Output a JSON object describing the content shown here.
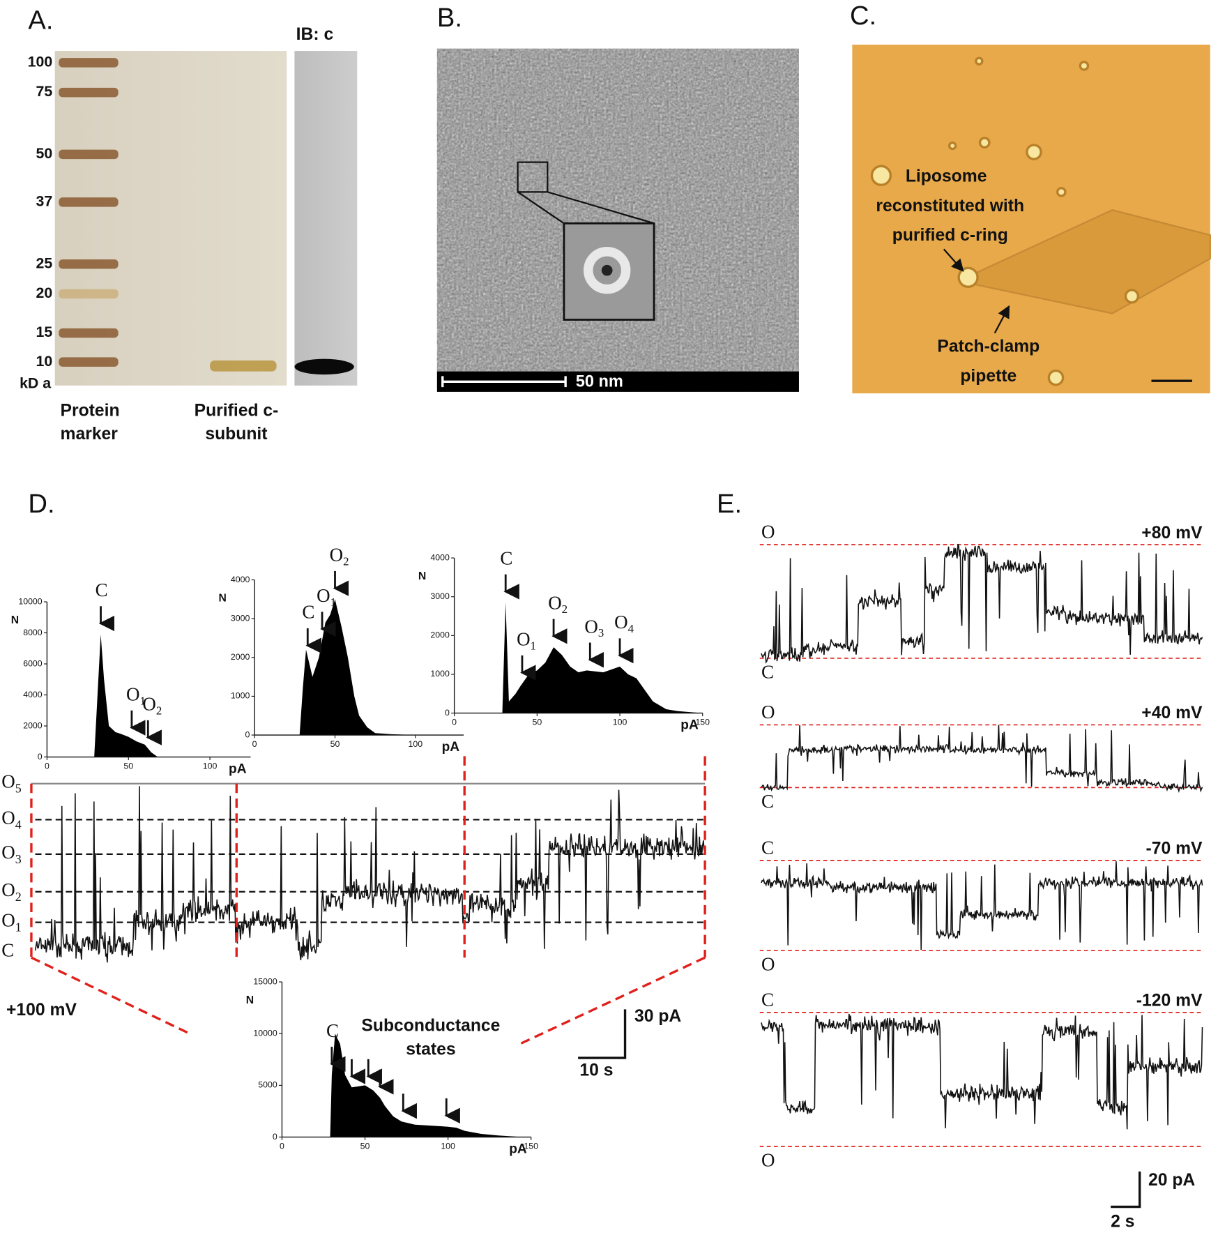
{
  "figure": {
    "panel_a": {
      "label": "A.",
      "blot_label": "IB: c",
      "marker_kda": [
        100,
        75,
        50,
        37,
        25,
        20,
        15,
        10
      ],
      "unit": "kD a",
      "lane_labels": [
        [
          "Protein",
          "marker"
        ],
        [
          "Purified c-",
          "subunit"
        ]
      ]
    },
    "panel_b": {
      "label": "B.",
      "scale_bar": "50 nm"
    },
    "panel_c": {
      "label": "C.",
      "liposome_label": [
        "Liposome",
        "reconstituted with",
        "purified c-ring"
      ],
      "pipette_label": [
        "Patch-clamp",
        "pipette"
      ]
    },
    "panel_d": {
      "label": "D.",
      "voltage": "+100 mV",
      "levels": [
        [
          "C"
        ],
        [
          "O",
          "1"
        ],
        [
          "O",
          "2"
        ],
        [
          "O",
          "3"
        ],
        [
          "O",
          "4"
        ],
        [
          "O",
          "5"
        ]
      ],
      "scale_y": "30 pA",
      "scale_x": "10 s"
    },
    "panel_e": {
      "label": "E.",
      "traces": [
        {
          "voltage": "+80 mV",
          "top": "O",
          "bottom": "C"
        },
        {
          "voltage": "+40 mV",
          "top": "O",
          "bottom": "C"
        },
        {
          "voltage": "-70 mV",
          "top": "C",
          "bottom": "O"
        },
        {
          "voltage": "-120 mV",
          "top": "C",
          "bottom": "O"
        }
      ],
      "scale_y": "20 pA",
      "scale_x": "2 s"
    }
  },
  "chart_data": [
    {
      "type": "area",
      "x_label": "pA",
      "y_label": "N",
      "x": [
        0,
        29,
        31,
        33,
        35,
        38,
        42,
        45,
        50,
        55,
        60,
        64,
        68,
        125
      ],
      "values": [
        0,
        0,
        4000,
        7900,
        5000,
        2000,
        1600,
        1500,
        1300,
        1000,
        800,
        300,
        0,
        0
      ],
      "xlim": [
        0,
        125
      ],
      "xticks": [
        0,
        50,
        100
      ],
      "ylim": [
        0,
        10000
      ],
      "yticks": [
        0,
        2000,
        4000,
        6000,
        8000,
        10000
      ],
      "annotations": [
        {
          "label": "C",
          "x": 33
        },
        {
          "label": "O",
          "sub": "1",
          "x": 52
        },
        {
          "label": "O",
          "sub": "2",
          "x": 62
        }
      ]
    },
    {
      "type": "area",
      "x_label": "pA",
      "y_label": "N",
      "x": [
        0,
        28,
        30,
        32,
        36,
        40,
        44,
        47,
        50,
        54,
        58,
        62,
        65,
        70,
        75,
        85,
        100,
        130
      ],
      "values": [
        0,
        0,
        1200,
        2200,
        1500,
        2000,
        2900,
        3100,
        3500,
        2800,
        2000,
        1000,
        500,
        200,
        50,
        20,
        0,
        0
      ],
      "xlim": [
        0,
        130
      ],
      "xticks": [
        0,
        50,
        100
      ],
      "ylim": [
        0,
        4000
      ],
      "yticks": [
        0,
        1000,
        2000,
        3000,
        4000
      ],
      "annotations": [
        {
          "label": "C",
          "x": 33
        },
        {
          "label": "O",
          "sub": "1",
          "x": 42
        },
        {
          "label": "O",
          "sub": "2",
          "x": 50
        }
      ]
    },
    {
      "type": "area",
      "x_label": "pA",
      "y_label": "N",
      "x": [
        0,
        29,
        31,
        33,
        37,
        40,
        45,
        50,
        55,
        60,
        65,
        70,
        75,
        80,
        90,
        100,
        105,
        110,
        115,
        120,
        128,
        135,
        150
      ],
      "values": [
        0,
        0,
        2850,
        300,
        500,
        700,
        1000,
        1100,
        1300,
        1700,
        1500,
        1200,
        1050,
        1100,
        1050,
        1200,
        1000,
        900,
        600,
        300,
        100,
        50,
        0
      ],
      "xlim": [
        0,
        150
      ],
      "xticks": [
        0,
        50,
        100,
        150
      ],
      "ylim": [
        0,
        4000
      ],
      "yticks": [
        0,
        1000,
        2000,
        3000,
        4000
      ],
      "annotations": [
        {
          "label": "C",
          "x": 31
        },
        {
          "label": "O",
          "sub": "1",
          "x": 41
        },
        {
          "label": "O",
          "sub": "2",
          "x": 60
        },
        {
          "label": "O",
          "sub": "3",
          "x": 82
        },
        {
          "label": "O",
          "sub": "4",
          "x": 100
        }
      ]
    },
    {
      "type": "area",
      "x_label": "pA",
      "y_label": "N",
      "note": [
        "Subconductance",
        "states"
      ],
      "x": [
        0,
        29,
        30,
        32,
        35,
        38,
        42,
        46,
        50,
        55,
        59,
        62,
        67,
        72,
        80,
        90,
        100,
        105,
        110,
        120,
        130,
        145,
        150
      ],
      "values": [
        0,
        0,
        6000,
        10000,
        9000,
        6000,
        4800,
        4900,
        5000,
        4500,
        3800,
        3000,
        2000,
        1500,
        1200,
        1100,
        1000,
        900,
        600,
        300,
        150,
        0,
        0
      ],
      "xlim": [
        0,
        150
      ],
      "xticks": [
        0,
        50,
        100,
        150
      ],
      "ylim": [
        0,
        15000
      ],
      "yticks": [
        0,
        5000,
        10000,
        15000
      ],
      "annotations": [
        {
          "label": "C",
          "x": 30
        },
        {
          "x": 42
        },
        {
          "x": 52
        },
        {
          "x": 59
        },
        {
          "x": 73
        },
        {
          "x": 99
        }
      ]
    }
  ]
}
